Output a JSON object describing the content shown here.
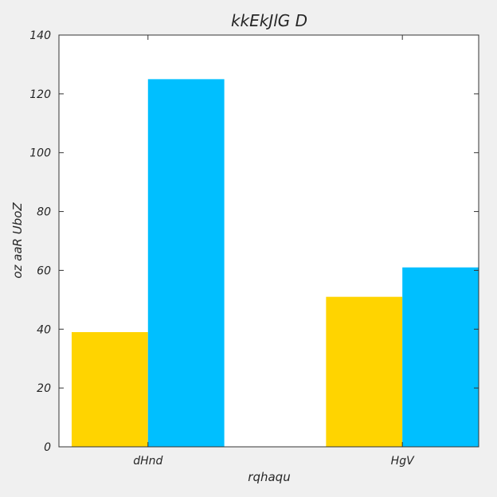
{
  "chart_data": {
    "type": "bar",
    "title": "kkEkJlG D",
    "xlabel": "rqhaqu",
    "ylabel": "oz aaR  UboZ",
    "categories": [
      "dHnd",
      "HgV"
    ],
    "series": [
      {
        "values": [
          39,
          51
        ],
        "color": "#FFD400"
      },
      {
        "values": [
          125,
          61
        ],
        "color": "#00BFFF"
      }
    ],
    "ylim": [
      0,
      140
    ],
    "yticks": [
      0,
      20,
      40,
      60,
      80,
      100,
      120,
      140
    ],
    "grid": false,
    "legend": "none"
  }
}
